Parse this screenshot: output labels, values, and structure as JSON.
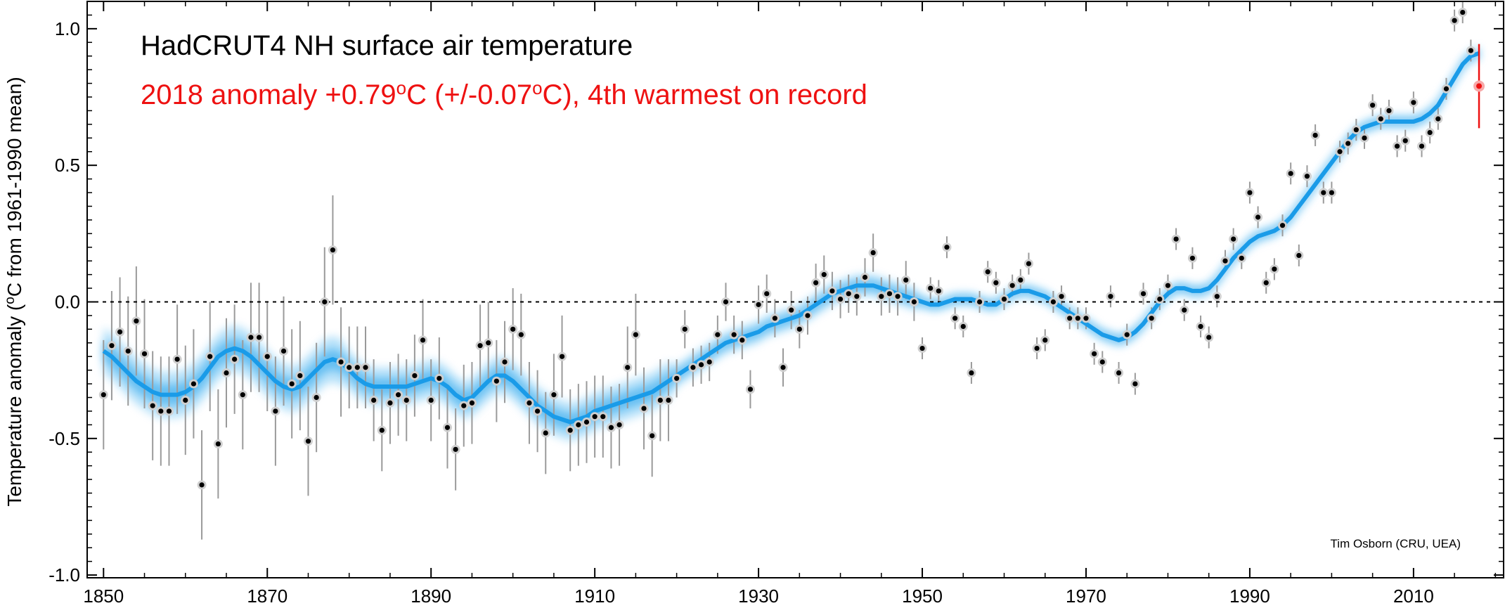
{
  "chart_data": {
    "type": "scatter",
    "title": "HadCRUT4 NH surface air temperature",
    "subtitle_prefix": "2018 anomaly +0.79",
    "subtitle_deg1": "o",
    "subtitle_mid": "C (+/-0.07",
    "subtitle_deg2": "o",
    "subtitle_suffix": "C), 4th warmest on record",
    "ylabel_prefix": "Temperature anomaly (",
    "ylabel_deg": "o",
    "ylabel_suffix": "C from 1961-1990 mean)",
    "xlabel": "",
    "credit": "Tim Osborn (CRU, UEA)",
    "xlim": [
      1848,
      2021
    ],
    "ylim": [
      -1.01,
      1.1
    ],
    "xticks": [
      1850,
      1870,
      1890,
      1910,
      1930,
      1950,
      1970,
      1990,
      2010
    ],
    "xtick_labels": [
      "1850",
      "1870",
      "1890",
      "1910",
      "1930",
      "1950",
      "1970",
      "1990",
      "2010"
    ],
    "yticks": [
      -1.0,
      -0.5,
      0.0,
      0.5,
      1.0
    ],
    "ytick_labels": [
      "-1.0",
      "-0.5",
      "0.0",
      "0.5",
      "1.0"
    ],
    "reference_line": 0.0,
    "colors": {
      "points": "#000000",
      "smooth": "#1a9be8",
      "highlight": "#ee1111",
      "errorbars": "#9a9a9a"
    },
    "highlight": {
      "x": 2018,
      "y": 0.79,
      "err": 0.07
    },
    "x": [
      1850,
      1851,
      1852,
      1853,
      1854,
      1855,
      1856,
      1857,
      1858,
      1859,
      1860,
      1861,
      1862,
      1863,
      1864,
      1865,
      1866,
      1867,
      1868,
      1869,
      1870,
      1871,
      1872,
      1873,
      1874,
      1875,
      1876,
      1877,
      1878,
      1879,
      1880,
      1881,
      1882,
      1883,
      1884,
      1885,
      1886,
      1887,
      1888,
      1889,
      1890,
      1891,
      1892,
      1893,
      1894,
      1895,
      1896,
      1897,
      1898,
      1899,
      1900,
      1901,
      1902,
      1903,
      1904,
      1905,
      1906,
      1907,
      1908,
      1909,
      1910,
      1911,
      1912,
      1913,
      1914,
      1915,
      1916,
      1917,
      1918,
      1919,
      1920,
      1921,
      1922,
      1923,
      1924,
      1925,
      1926,
      1927,
      1928,
      1929,
      1930,
      1931,
      1932,
      1933,
      1934,
      1935,
      1936,
      1937,
      1938,
      1939,
      1940,
      1941,
      1942,
      1943,
      1944,
      1945,
      1946,
      1947,
      1948,
      1949,
      1950,
      1951,
      1952,
      1953,
      1954,
      1955,
      1956,
      1957,
      1958,
      1959,
      1960,
      1961,
      1962,
      1963,
      1964,
      1965,
      1966,
      1967,
      1968,
      1969,
      1970,
      1971,
      1972,
      1973,
      1974,
      1975,
      1976,
      1977,
      1978,
      1979,
      1980,
      1981,
      1982,
      1983,
      1984,
      1985,
      1986,
      1987,
      1988,
      1989,
      1990,
      1991,
      1992,
      1993,
      1994,
      1995,
      1996,
      1997,
      1998,
      1999,
      2000,
      2001,
      2002,
      2003,
      2004,
      2005,
      2006,
      2007,
      2008,
      2009,
      2010,
      2011,
      2012,
      2013,
      2014,
      2015,
      2016,
      2017,
      2018
    ],
    "y": [
      -0.34,
      -0.16,
      -0.11,
      -0.18,
      -0.07,
      -0.19,
      -0.38,
      -0.4,
      -0.4,
      -0.21,
      -0.36,
      -0.3,
      -0.67,
      -0.2,
      -0.52,
      -0.26,
      -0.21,
      -0.34,
      -0.13,
      -0.13,
      -0.2,
      -0.4,
      -0.18,
      -0.3,
      -0.27,
      -0.51,
      -0.35,
      0.0,
      0.19,
      -0.22,
      -0.24,
      -0.24,
      -0.24,
      -0.36,
      -0.47,
      -0.37,
      -0.34,
      -0.36,
      -0.27,
      -0.14,
      -0.36,
      -0.28,
      -0.46,
      -0.54,
      -0.38,
      -0.37,
      -0.16,
      -0.15,
      -0.29,
      -0.22,
      -0.1,
      -0.12,
      -0.37,
      -0.4,
      -0.48,
      -0.34,
      -0.2,
      -0.47,
      -0.45,
      -0.44,
      -0.42,
      -0.42,
      -0.46,
      -0.45,
      -0.24,
      -0.12,
      -0.39,
      -0.49,
      -0.36,
      -0.36,
      -0.28,
      -0.1,
      -0.24,
      -0.23,
      -0.22,
      -0.12,
      0.0,
      -0.12,
      -0.14,
      -0.32,
      -0.01,
      0.03,
      -0.06,
      -0.24,
      -0.03,
      -0.1,
      -0.05,
      0.07,
      0.1,
      0.04,
      0.01,
      0.03,
      0.02,
      0.09,
      0.18,
      0.02,
      0.03,
      0.02,
      0.08,
      0.0,
      -0.17,
      0.05,
      0.04,
      0.2,
      -0.06,
      -0.09,
      -0.26,
      0.0,
      0.11,
      0.07,
      0.01,
      0.06,
      0.08,
      0.14,
      -0.17,
      -0.14,
      0.0,
      0.02,
      -0.06,
      -0.06,
      -0.06,
      -0.19,
      -0.22,
      0.02,
      -0.26,
      -0.12,
      -0.3,
      0.03,
      -0.06,
      0.01,
      0.06,
      0.23,
      -0.03,
      0.16,
      -0.09,
      -0.13,
      0.02,
      0.15,
      0.23,
      0.16,
      0.4,
      0.31,
      0.07,
      0.12,
      0.28,
      0.47,
      0.17,
      0.46,
      0.61,
      0.4,
      0.4,
      0.55,
      0.58,
      0.63,
      0.6,
      0.72,
      0.67,
      0.7,
      0.57,
      0.59,
      0.73,
      0.57,
      0.62,
      0.67,
      0.78,
      1.03,
      1.06,
      0.92,
      0.79
    ],
    "smooth": [
      -0.18,
      -0.2,
      -0.23,
      -0.26,
      -0.29,
      -0.31,
      -0.33,
      -0.34,
      -0.34,
      -0.34,
      -0.33,
      -0.31,
      -0.28,
      -0.24,
      -0.2,
      -0.18,
      -0.17,
      -0.18,
      -0.2,
      -0.23,
      -0.26,
      -0.29,
      -0.31,
      -0.32,
      -0.31,
      -0.28,
      -0.25,
      -0.22,
      -0.21,
      -0.22,
      -0.25,
      -0.28,
      -0.3,
      -0.31,
      -0.31,
      -0.31,
      -0.31,
      -0.31,
      -0.3,
      -0.29,
      -0.28,
      -0.29,
      -0.31,
      -0.34,
      -0.36,
      -0.35,
      -0.32,
      -0.29,
      -0.27,
      -0.27,
      -0.29,
      -0.32,
      -0.35,
      -0.38,
      -0.4,
      -0.42,
      -0.43,
      -0.44,
      -0.43,
      -0.42,
      -0.4,
      -0.39,
      -0.38,
      -0.37,
      -0.36,
      -0.35,
      -0.34,
      -0.33,
      -0.31,
      -0.29,
      -0.27,
      -0.25,
      -0.23,
      -0.21,
      -0.19,
      -0.17,
      -0.15,
      -0.14,
      -0.13,
      -0.12,
      -0.11,
      -0.09,
      -0.08,
      -0.07,
      -0.06,
      -0.05,
      -0.03,
      -0.01,
      0.01,
      0.03,
      0.04,
      0.05,
      0.06,
      0.06,
      0.06,
      0.05,
      0.04,
      0.03,
      0.02,
      0.01,
      0.0,
      -0.01,
      -0.01,
      0.0,
      0.01,
      0.01,
      0.01,
      0.0,
      -0.01,
      -0.01,
      0.01,
      0.03,
      0.04,
      0.04,
      0.03,
      0.02,
      0.0,
      -0.02,
      -0.04,
      -0.06,
      -0.08,
      -0.1,
      -0.12,
      -0.13,
      -0.14,
      -0.13,
      -0.11,
      -0.08,
      -0.04,
      0.0,
      0.03,
      0.05,
      0.05,
      0.04,
      0.04,
      0.05,
      0.08,
      0.12,
      0.16,
      0.19,
      0.22,
      0.24,
      0.25,
      0.26,
      0.28,
      0.31,
      0.35,
      0.39,
      0.43,
      0.47,
      0.51,
      0.55,
      0.59,
      0.62,
      0.64,
      0.65,
      0.66,
      0.66,
      0.66,
      0.66,
      0.66,
      0.67,
      0.69,
      0.72,
      0.77,
      0.82,
      0.87,
      0.9,
      0.91
    ]
  }
}
